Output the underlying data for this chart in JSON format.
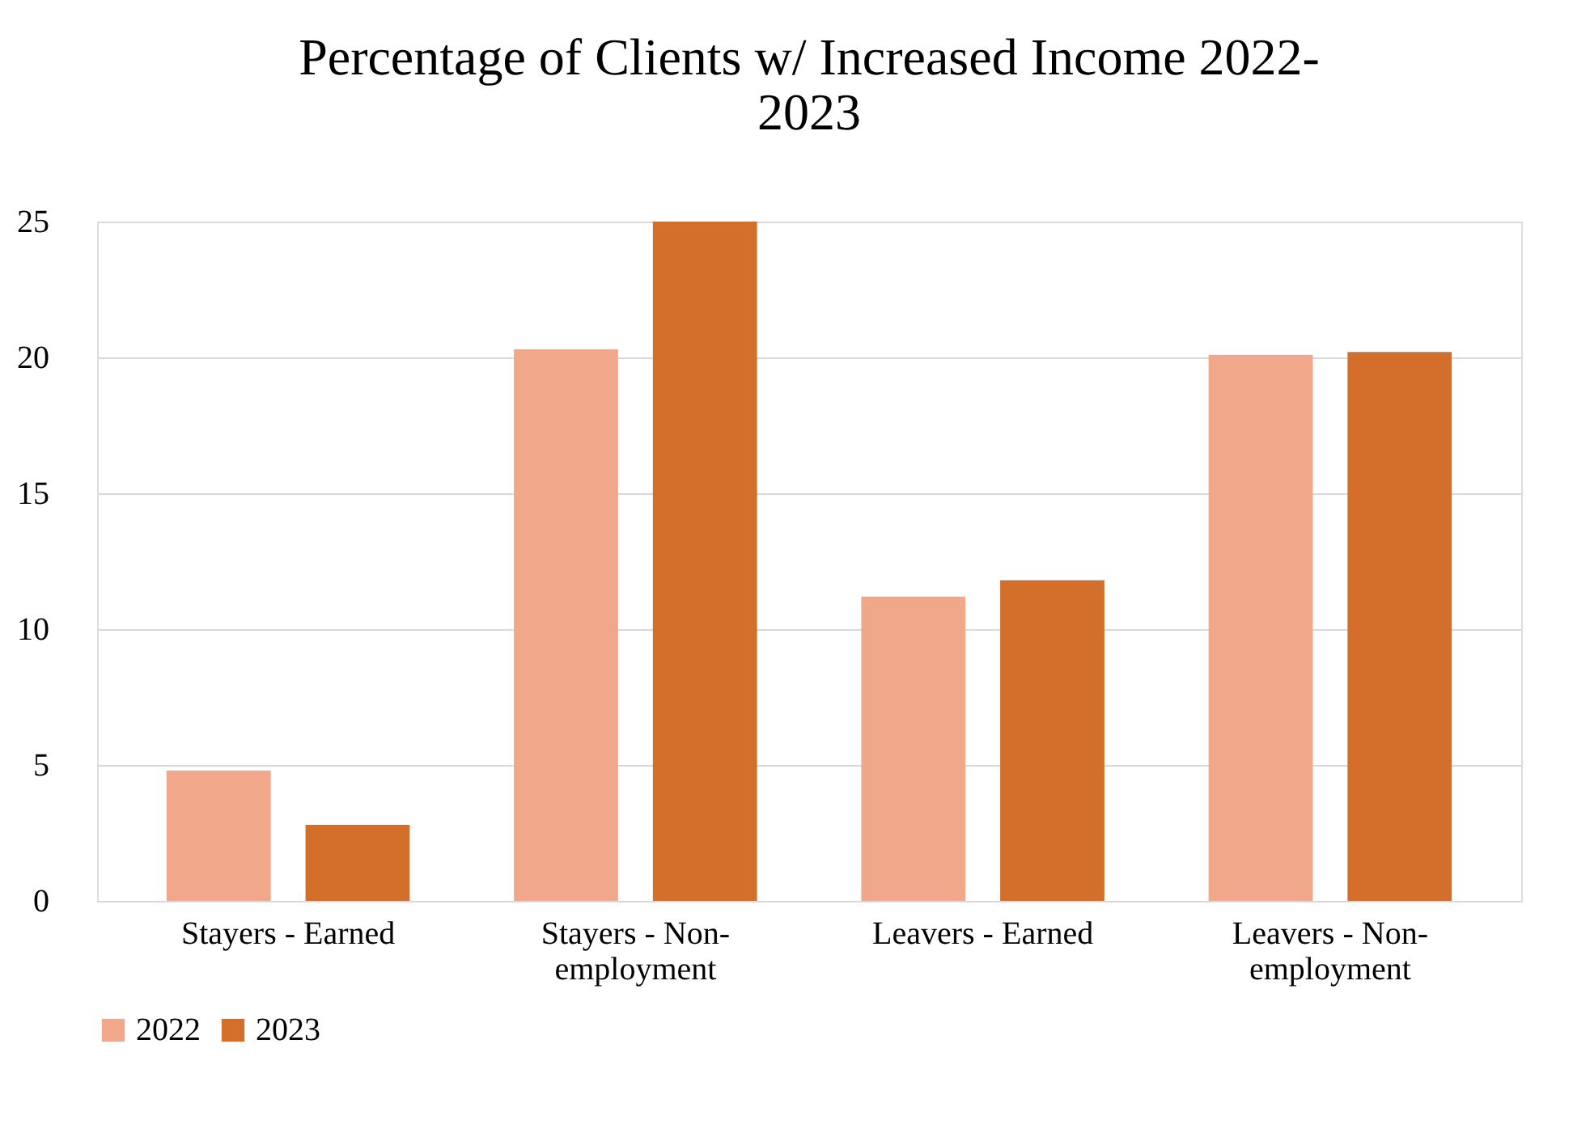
{
  "chart_data": {
    "type": "bar",
    "title": "Percentage of Clients w/ Increased Income 2022-2023",
    "categories": [
      "Stayers - Earned",
      "Stayers - Non-employment",
      "Leavers - Earned",
      "Leavers - Non-employment"
    ],
    "series": [
      {
        "name": "2022",
        "color": "#f1a78a",
        "values": [
          4.8,
          20.3,
          11.2,
          20.1
        ]
      },
      {
        "name": "2023",
        "color": "#d36f2b",
        "values": [
          2.8,
          25.0,
          11.8,
          20.2
        ]
      }
    ],
    "ylim": [
      0,
      25
    ],
    "yticks": [
      0,
      5,
      10,
      15,
      20,
      25
    ],
    "grid": "y",
    "legend": "bottom"
  }
}
